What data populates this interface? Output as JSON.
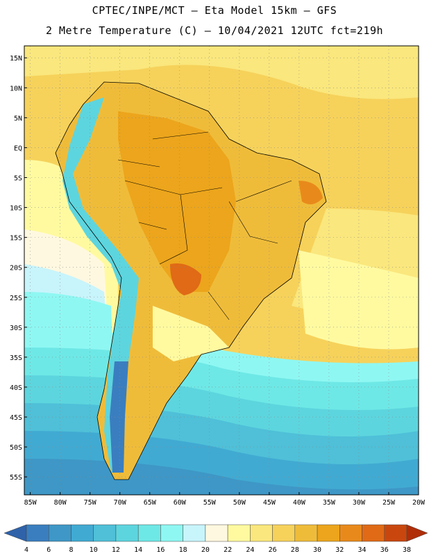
{
  "title": {
    "line1": "CPTEC/INPE/MCT –  Eta Model 15km – GFS",
    "line2": "2 Metre Temperature (C) – 10/04/2021 12UTC fct=219h"
  },
  "map": {
    "region": "South America",
    "projection": "lat-lon",
    "lon_range": [
      -86,
      -20
    ],
    "lat_range": [
      -58,
      17
    ],
    "lat_labels": [
      "15N",
      "10N",
      "5N",
      "EQ",
      "5S",
      "10S",
      "15S",
      "20S",
      "25S",
      "30S",
      "35S",
      "40S",
      "45S",
      "50S",
      "55S"
    ],
    "lon_labels": [
      "85W",
      "80W",
      "75W",
      "70W",
      "65W",
      "60W",
      "55W",
      "50W",
      "45W",
      "40W",
      "35W",
      "30W",
      "25W",
      "20W"
    ],
    "field": "2 Metre Temperature",
    "units": "C"
  },
  "colorbar": {
    "labels": [
      "4",
      "6",
      "8",
      "10",
      "12",
      "14",
      "16",
      "18",
      "20",
      "22",
      "24",
      "26",
      "28",
      "30",
      "32",
      "34",
      "36",
      "38"
    ],
    "colors": [
      "#2f62a9",
      "#3a7ec0",
      "#3e97c6",
      "#41aad2",
      "#4fc0d8",
      "#5dd5de",
      "#6ee8e6",
      "#8ff7f2",
      "#c8f4fb",
      "#fff8e0",
      "#fffaa0",
      "#fae77d",
      "#f6d25b",
      "#efbc3a",
      "#eca51c",
      "#e88a1b",
      "#e06a16",
      "#c9470e",
      "#b02e08"
    ]
  }
}
